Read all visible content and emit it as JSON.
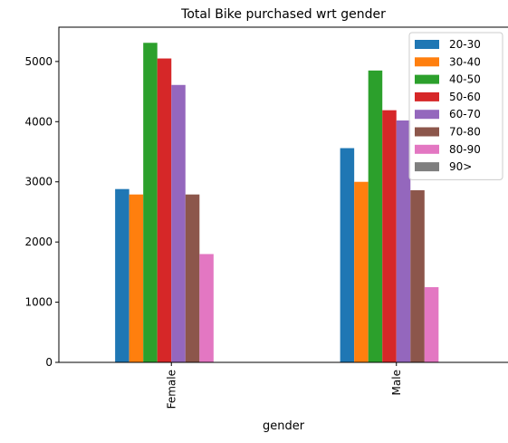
{
  "chart_data": {
    "type": "bar",
    "title": "Total Bike purchased wrt gender",
    "xlabel": "gender",
    "ylabel": "",
    "categories": [
      "Female",
      "Male"
    ],
    "ylim": [
      0,
      5570
    ],
    "yticks": [
      0,
      1000,
      2000,
      3000,
      4000,
      5000
    ],
    "grid": false,
    "legend_position": "top-right",
    "series": [
      {
        "name": "20-30",
        "color": "#1f77b4",
        "values": [
          2880,
          3560
        ]
      },
      {
        "name": "30-40",
        "color": "#ff7f0e",
        "values": [
          2790,
          3000
        ]
      },
      {
        "name": "40-50",
        "color": "#2ca02c",
        "values": [
          5310,
          4850
        ]
      },
      {
        "name": "50-60",
        "color": "#d62728",
        "values": [
          5050,
          4190
        ]
      },
      {
        "name": "60-70",
        "color": "#9467bd",
        "values": [
          4610,
          4020
        ]
      },
      {
        "name": "70-80",
        "color": "#8c564b",
        "values": [
          2790,
          2860
        ]
      },
      {
        "name": "80-90",
        "color": "#e377c2",
        "values": [
          1800,
          1250
        ]
      },
      {
        "name": "90>",
        "color": "#7f7f7f",
        "values": [
          0,
          0
        ]
      }
    ]
  }
}
